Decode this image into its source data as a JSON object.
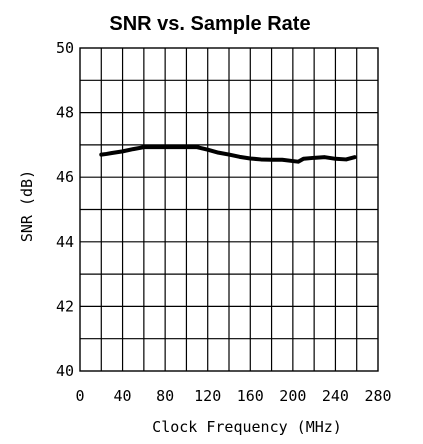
{
  "chart_data": {
    "type": "line",
    "title": "SNR vs. Sample Rate",
    "xlabel": "Clock Frequency (MHz)",
    "ylabel": "SNR (dB)",
    "xlim": [
      0,
      280
    ],
    "ylim": [
      40,
      50
    ],
    "xticks": [
      0,
      40,
      80,
      120,
      160,
      200,
      240,
      280
    ],
    "yticks": [
      40,
      42,
      44,
      46,
      48,
      50
    ],
    "grid": true,
    "series": [
      {
        "x": [
          20,
          25,
          30,
          40,
          50,
          60,
          70,
          80,
          90,
          100,
          110,
          120,
          130,
          140,
          150,
          160,
          170,
          180,
          190,
          200,
          205,
          210,
          220,
          230,
          240,
          250,
          258
        ],
        "y": [
          46.7,
          46.72,
          46.75,
          46.8,
          46.87,
          46.93,
          46.93,
          46.93,
          46.93,
          46.93,
          46.93,
          46.85,
          46.76,
          46.7,
          46.63,
          46.58,
          46.55,
          46.54,
          46.54,
          46.5,
          46.48,
          46.57,
          46.6,
          46.62,
          46.57,
          46.55,
          46.62
        ]
      }
    ],
    "colors": {
      "line": "#000000",
      "grid": "#000000",
      "background": "#ffffff"
    }
  }
}
